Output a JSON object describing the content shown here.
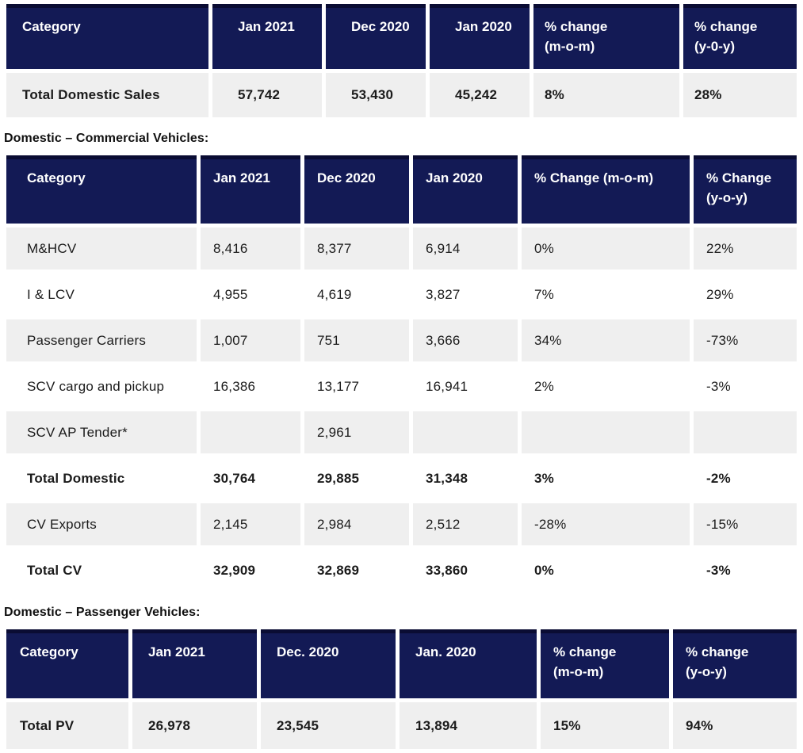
{
  "colors": {
    "header_bg": "#131a55",
    "header_border_top": "#0a0c33",
    "header_text": "#ffffff",
    "row_alt_bg": "#efefef",
    "body_text": "#1b1b1b",
    "heading_text": "#111111",
    "page_bg": "#ffffff"
  },
  "summary_table": {
    "columns": [
      "Category",
      "Jan 2021",
      "Dec 2020",
      "Jan 2020",
      "% change\n(m-o-m)",
      "% change\n(y-0-y)"
    ],
    "rows": [
      {
        "cells": [
          "Total Domestic Sales",
          "57,742",
          "53,430",
          "45,242",
          "8%",
          "28%"
        ],
        "shaded": true,
        "bold": true
      }
    ]
  },
  "cv_section": {
    "heading": "Domestic – Commercial Vehicles:",
    "table": {
      "columns": [
        "Category",
        "Jan 2021",
        "Dec 2020",
        "Jan 2020",
        "% Change (m-o-m)",
        "% Change\n(y-o-y)"
      ],
      "rows": [
        {
          "cells": [
            "M&HCV",
            "8,416",
            "8,377",
            "6,914",
            "0%",
            "22%"
          ],
          "shaded": true,
          "bold": false
        },
        {
          "cells": [
            "I & LCV",
            "4,955",
            "4,619",
            "3,827",
            "7%",
            "29%"
          ],
          "shaded": false,
          "bold": false
        },
        {
          "cells": [
            "Passenger Carriers",
            "1,007",
            "751",
            "3,666",
            "34%",
            "-73%"
          ],
          "shaded": true,
          "bold": false
        },
        {
          "cells": [
            "SCV cargo and pickup",
            "16,386",
            "13,177",
            "16,941",
            "2%",
            "-3%"
          ],
          "shaded": false,
          "bold": false
        },
        {
          "cells": [
            "SCV AP Tender*",
            "",
            "2,961",
            "",
            "",
            ""
          ],
          "shaded": true,
          "bold": false
        },
        {
          "cells": [
            "Total Domestic",
            "30,764",
            "29,885",
            "31,348",
            "3%",
            "-2%"
          ],
          "shaded": false,
          "bold": true
        },
        {
          "cells": [
            "CV Exports",
            "2,145",
            "2,984",
            "2,512",
            "-28%",
            "-15%"
          ],
          "shaded": true,
          "bold": false
        },
        {
          "cells": [
            "Total CV",
            "32,909",
            "32,869",
            "33,860",
            "0%",
            "-3%"
          ],
          "shaded": false,
          "bold": true
        }
      ]
    }
  },
  "pv_section": {
    "heading": "Domestic – Passenger Vehicles:",
    "table": {
      "columns": [
        "Category",
        "Jan 2021",
        "Dec. 2020",
        "Jan. 2020",
        "% change\n(m-o-m)",
        "% change\n(y-o-y)"
      ],
      "rows": [
        {
          "cells": [
            "Total PV",
            "26,978",
            "23,545",
            "13,894",
            "15%",
            "94%"
          ],
          "shaded": true,
          "bold": true
        }
      ]
    }
  }
}
